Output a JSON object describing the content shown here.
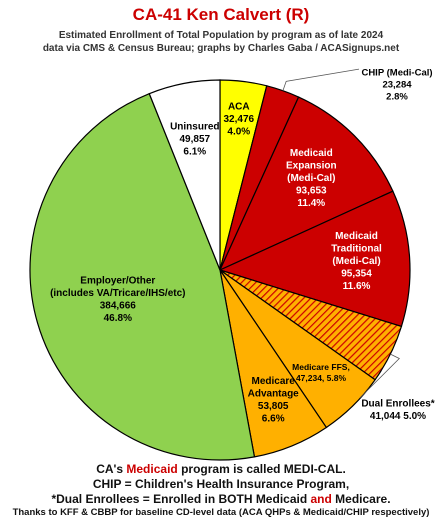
{
  "header": {
    "title": "CA-41 Ken Calvert (R)",
    "subtitle_1": "Estimated Enrollment of Total Population by program as of late 2024",
    "subtitle_2": "data via CMS & Census Bureau; graphs by Charles Gaba / ACASignups.net"
  },
  "colors": {
    "title": "#cc0000",
    "aca": "#ffff00",
    "chip": "#cc0000",
    "medicaid": "#cc0000",
    "dual": "#e87a00",
    "medicare": "#ffb000",
    "employer": "#8fd14f",
    "uninsured": "#ffffff",
    "outline": "#000000"
  },
  "chart_data": {
    "type": "pie",
    "start": "12 o'clock",
    "direction": "clockwise",
    "slices": [
      {
        "key": "aca",
        "label": "ACA",
        "value": 32476,
        "value_text": "32,476",
        "percent": 4.0,
        "percent_text": "4.0%",
        "color": "#ffff00",
        "text_color": "#000000"
      },
      {
        "key": "chip",
        "label": "CHIP (Medi-Cal)",
        "value": 23284,
        "value_text": "23,284",
        "percent": 2.8,
        "percent_text": "2.8%",
        "color": "#cc0000",
        "text_color": "#000000"
      },
      {
        "key": "medicaid_expansion",
        "label": "Medicaid Expansion (Medi-Cal)",
        "value": 93653,
        "value_text": "93,653",
        "percent": 11.4,
        "percent_text": "11.4%",
        "color": "#cc0000",
        "text_color": "#ffffff"
      },
      {
        "key": "medicaid_traditional",
        "label": "Medicaid Traditional (Medi-Cal)",
        "value": 95354,
        "value_text": "95,354",
        "percent": 11.6,
        "percent_text": "11.6%",
        "color": "#cc0000",
        "text_color": "#ffffff"
      },
      {
        "key": "dual",
        "label": "Dual Enrollees*",
        "value": 41044,
        "value_text": "41,044",
        "percent": 5.0,
        "percent_text": "5.0%",
        "color": "#e87a00",
        "text_color": "#000000",
        "hatched": true
      },
      {
        "key": "medicare_ffs",
        "label": "Medicare FFS",
        "value": 47234,
        "value_text": "47,234",
        "percent": 5.8,
        "percent_text": "5.8%",
        "color": "#ffb000",
        "text_color": "#000000"
      },
      {
        "key": "medicare_advantage",
        "label": "Medicare Advantage",
        "value": 53805,
        "value_text": "53,805",
        "percent": 6.6,
        "percent_text": "6.6%",
        "color": "#ffb000",
        "text_color": "#000000"
      },
      {
        "key": "employer",
        "label": "Employer/Other (includes VA/Tricare/IHS/etc)",
        "value": 384666,
        "value_text": "384,666",
        "percent": 46.8,
        "percent_text": "46.8%",
        "color": "#8fd14f",
        "text_color": "#000000"
      },
      {
        "key": "uninsured",
        "label": "Uninsured",
        "value": 49857,
        "value_text": "49,857",
        "percent": 6.1,
        "percent_text": "6.1%",
        "color": "#ffffff",
        "text_color": "#000000"
      }
    ],
    "labels": {
      "aca": [
        "ACA",
        "32,476",
        "4.0%"
      ],
      "chip": [
        "CHIP (Medi-Cal)",
        "23,284",
        "2.8%"
      ],
      "medicaid_expansion": [
        "Medicaid",
        "Expansion",
        "(Medi-Cal)",
        "93,653",
        "11.4%"
      ],
      "medicaid_traditional": [
        "Medicaid",
        "Traditional",
        "(Medi-Cal)",
        "95,354",
        "11.6%"
      ],
      "dual": [
        "Dual Enrollees*",
        "41,044  5.0%"
      ],
      "medicare_ffs": [
        "Medicare FFS,",
        "47,234, 5.8%"
      ],
      "medicare_advantage": [
        "Medicare",
        "Advantage",
        "53,805",
        "6.6%"
      ],
      "employer": [
        "Employer/Other",
        "(includes VA/Tricare/IHS/etc)",
        "384,666",
        "46.8%"
      ],
      "uninsured": [
        "Uninsured",
        "49,857",
        "6.1%"
      ]
    }
  },
  "footer": {
    "line1_a": "CA's ",
    "line1_b": "Medicaid",
    "line1_c": " program is called ",
    "line1_d": "MEDI-CAL.",
    "line2": "CHIP = Children's Health Insurance Program,",
    "line3_a": "*Dual Enrollees",
    "line3_b": " = Enrolled in BOTH Medicaid ",
    "line3_c": "and",
    "line3_d": " Medicare.",
    "line4": "Thanks to KFF & CBBP for baseline CD-level data (ACA QHPs & Medicaid/CHIP respectively)"
  }
}
